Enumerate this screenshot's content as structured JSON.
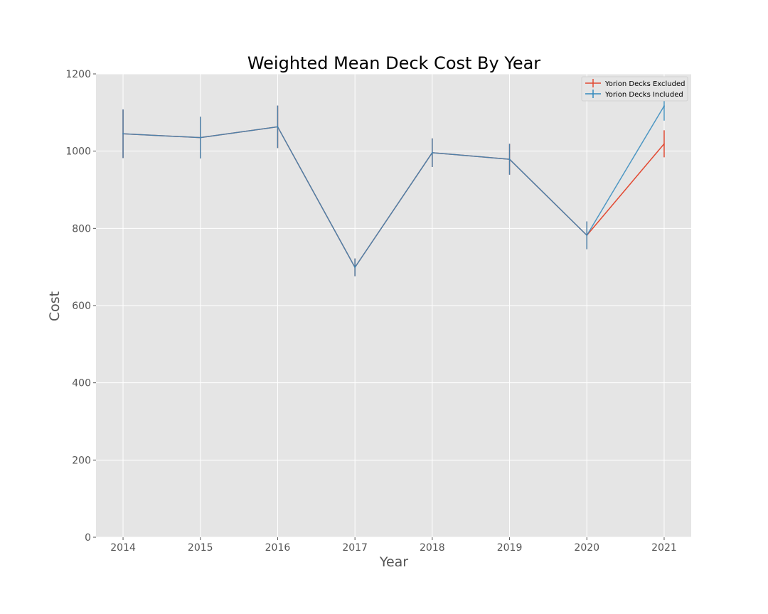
{
  "chart_data": {
    "type": "line",
    "title": "Weighted Mean Deck Cost By Year",
    "xlabel": "Year",
    "ylabel": "Cost",
    "x": [
      2014,
      2015,
      2016,
      2017,
      2018,
      2019,
      2020,
      2021
    ],
    "xlim": [
      2013.65,
      2021.35
    ],
    "ylim": [
      0,
      1200
    ],
    "yticks": [
      0,
      200,
      400,
      600,
      800,
      1000,
      1200
    ],
    "grid": true,
    "legend_position": "top-right",
    "series": [
      {
        "name": "Yorion Decks Excluded",
        "color": "#E24A33",
        "values": [
          1045,
          1035,
          1063,
          699,
          996,
          979,
          782,
          1019
        ],
        "errors": [
          63,
          54,
          55,
          23,
          37,
          40,
          36,
          35
        ]
      },
      {
        "name": "Yorion Decks Included",
        "color": "#348ABD",
        "values": [
          1045,
          1035,
          1063,
          699,
          996,
          979,
          782,
          1117
        ],
        "errors": [
          63,
          54,
          55,
          23,
          37,
          40,
          36,
          38
        ]
      }
    ],
    "colors": {
      "plot_background": "#E5E5E5",
      "grid": "#FFFFFF",
      "text": "#555555"
    }
  }
}
